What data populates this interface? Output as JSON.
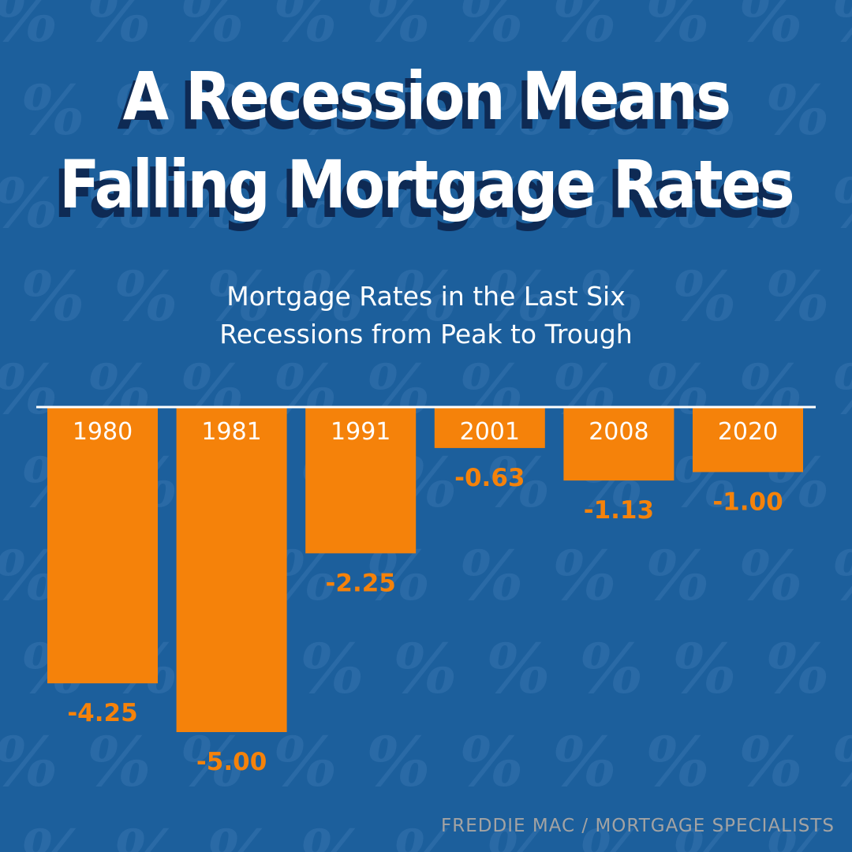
{
  "title": {
    "line1": "A Recession Means",
    "line2": "Falling Mortgage Rates"
  },
  "subtitle": {
    "line1": "Mortgage Rates in the Last Six",
    "line2": "Recessions from Peak to Trough"
  },
  "source": "FREDDIE MAC / MORTGAGE SPECIALISTS",
  "colors": {
    "background": "#1c5f9c",
    "pattern": "#2a6aa6",
    "bar": "#f5820a",
    "value_label": "#f5820a",
    "baseline": "#ffffff",
    "title_shadow": "#0e2a54"
  },
  "background_pattern_glyph": "%",
  "chart_data": {
    "type": "bar",
    "title": "A Recession Means Falling Mortgage Rates",
    "subtitle": "Mortgage Rates in the Last Six Recessions from Peak to Trough",
    "categories": [
      "1980",
      "1981",
      "1991",
      "2001",
      "2008",
      "2020"
    ],
    "values": [
      -4.25,
      -5.0,
      -2.25,
      -0.63,
      -1.13,
      -1.0
    ],
    "value_labels": [
      "-4.25",
      "-5.00",
      "-2.25",
      "-0.63",
      "-1.13",
      "-1.00"
    ],
    "ylim": [
      -5.0,
      0
    ],
    "grid": false,
    "legend": "none",
    "orientation": "bars hang downward from top baseline"
  }
}
